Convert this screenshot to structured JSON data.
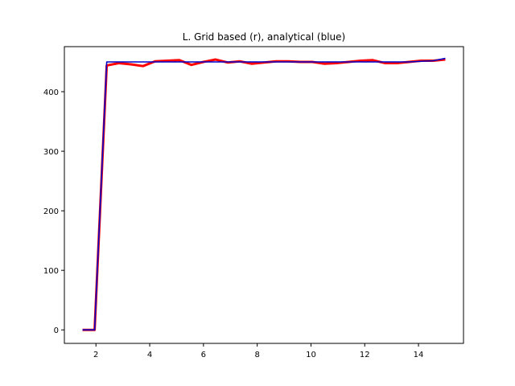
{
  "chart_data": {
    "type": "line",
    "title": "L. Grid based (r), analytical (blue)",
    "xlabel": "",
    "ylabel": "",
    "xlim": [
      0.825,
      15.675
    ],
    "ylim": [
      -22.65,
      475.65
    ],
    "x_ticks": [
      2,
      4,
      6,
      8,
      10,
      12,
      14
    ],
    "y_ticks": [
      0,
      100,
      200,
      300,
      400
    ],
    "x_tick_labels": [
      "2",
      "4",
      "6",
      "8",
      "10",
      "12",
      "14"
    ],
    "y_tick_labels": [
      "0",
      "100",
      "200",
      "300",
      "400"
    ],
    "grid": false,
    "legend": "none",
    "series": [
      {
        "color": "#ff0000",
        "line_width": 3,
        "x": [
          1.5,
          1.95,
          2.4,
          2.85,
          3.3,
          3.75,
          4.2,
          4.65,
          5.1,
          5.55,
          6.0,
          6.45,
          6.9,
          7.35,
          7.8,
          8.25,
          8.7,
          9.15,
          9.6,
          10.05,
          10.5,
          10.95,
          11.4,
          11.85,
          12.3,
          12.75,
          13.2,
          13.65,
          14.1,
          14.55,
          15.0
        ],
        "y": [
          0,
          0,
          444,
          448,
          446,
          443,
          451,
          452,
          453,
          445,
          450,
          454,
          449,
          451,
          447,
          449,
          451,
          451,
          450,
          450,
          447,
          448,
          450,
          452,
          453,
          448,
          448,
          450,
          452,
          452,
          454
        ]
      },
      {
        "color": "#0000cc",
        "line_width": 1.6,
        "x": [
          1.5,
          1.95,
          2.4,
          2.85,
          3.3,
          3.75,
          4.2,
          4.65,
          5.1,
          5.55,
          6.0,
          6.45,
          6.9,
          7.35,
          7.8,
          8.25,
          8.7,
          9.15,
          9.6,
          10.05,
          10.5,
          10.95,
          11.4,
          11.85,
          12.3,
          12.75,
          13.2,
          13.65,
          14.1,
          14.55,
          15.0
        ],
        "y": [
          0,
          0,
          450,
          450,
          450,
          450,
          450,
          450,
          450,
          450,
          450,
          450,
          450,
          450,
          450,
          450,
          450,
          450,
          450,
          450,
          450,
          450,
          450,
          450,
          450,
          450,
          450,
          450,
          451,
          452,
          456
        ]
      }
    ]
  }
}
